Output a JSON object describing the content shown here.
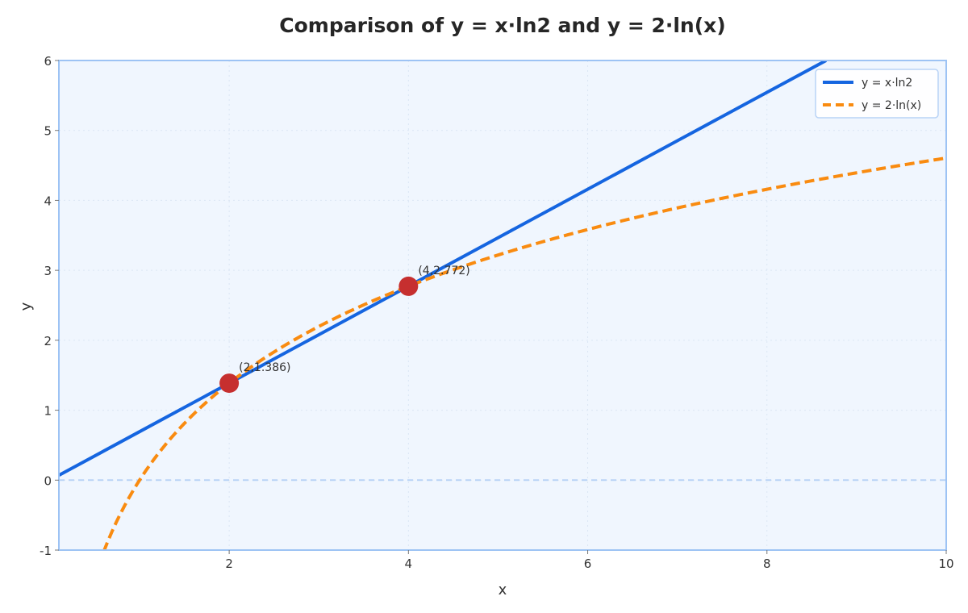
{
  "chart_data": {
    "type": "line",
    "title": "Comparison of y = x·ln2 and y = 2·ln(x)",
    "xlabel": "x",
    "ylabel": "y",
    "xlim": [
      0.1,
      10
    ],
    "ylim": [
      -1,
      6
    ],
    "x_ticks": [
      2,
      4,
      6,
      8,
      10
    ],
    "y_ticks": [
      -1,
      0,
      1,
      2,
      3,
      4,
      5,
      6
    ],
    "grid": true,
    "legend_position": "top-right",
    "reference_line_y": 0,
    "colors": {
      "series1": "#1565e0",
      "series2": "#f98b10",
      "points": "#c62f2f",
      "plot_bg": "#f0f6fe",
      "frame": "#9dc3f4",
      "grid": "#dbe6f4",
      "zero_line": "#b9d3f6"
    },
    "series": [
      {
        "name": "y = x·ln2",
        "style": "solid",
        "x": [
          0.1,
          1,
          2,
          3,
          4,
          5,
          6,
          7,
          8,
          8.66
        ],
        "y": [
          0.069,
          0.693,
          1.386,
          2.079,
          2.773,
          3.466,
          4.159,
          4.852,
          5.545,
          6.0
        ]
      },
      {
        "name": "y = 2·ln(x)",
        "style": "dashed",
        "x": [
          0.6,
          0.8,
          1,
          1.5,
          2,
          2.5,
          3,
          3.5,
          4,
          5,
          6,
          7,
          8,
          9,
          10
        ],
        "y": [
          -1.022,
          -0.446,
          0.0,
          0.811,
          1.386,
          1.833,
          2.197,
          2.506,
          2.773,
          3.219,
          3.584,
          3.892,
          4.159,
          4.394,
          4.605
        ]
      }
    ],
    "points": [
      {
        "x": 2,
        "y": 1.386,
        "label": "(2,1.386)"
      },
      {
        "x": 4,
        "y": 2.772,
        "label": "(4,2.772)"
      }
    ]
  }
}
